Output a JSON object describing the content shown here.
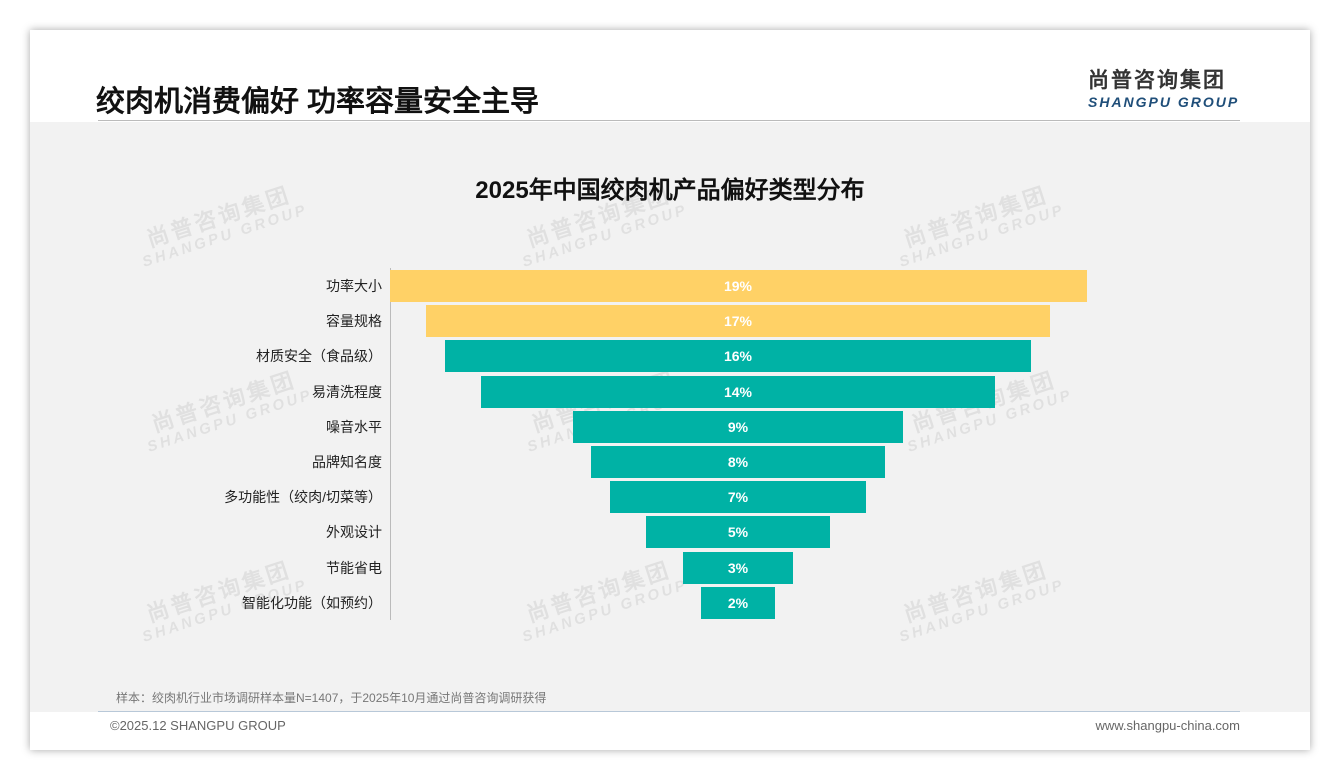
{
  "header": {
    "title": "绞肉机消费偏好 功率容量安全主导",
    "logo_cn": "尚普咨询集团",
    "logo_en": "SHANGPU GROUP"
  },
  "watermark": {
    "cn": "尚普咨询集团",
    "en": "SHANGPU GROUP"
  },
  "chart_data": {
    "type": "bar",
    "orientation": "horizontal-funnel",
    "title": "2025年中国绞肉机产品偏好类型分布",
    "categories": [
      "功率大小",
      "容量规格",
      "材质安全（食品级）",
      "易清洗程度",
      "噪音水平",
      "品牌知名度",
      "多功能性（绞肉/切菜等）",
      "外观设计",
      "节能省电",
      "智能化功能（如预约）"
    ],
    "values": [
      19,
      17,
      16,
      14,
      9,
      8,
      7,
      5,
      3,
      2
    ],
    "labels": [
      "19%",
      "17%",
      "16%",
      "14%",
      "9%",
      "8%",
      "7%",
      "5%",
      "3%",
      "2%"
    ],
    "colors": [
      "#FFD166",
      "#FFD166",
      "#00B2A5",
      "#00B2A5",
      "#00B2A5",
      "#00B2A5",
      "#00B2A5",
      "#00B2A5",
      "#00B2A5",
      "#00B2A5"
    ],
    "xlim": [
      0,
      19
    ]
  },
  "footer": {
    "note": "样本：绞肉机行业市场调研样本量N=1407，于2025年10月通过尚普咨询调研获得",
    "copyright": "©2025.12 SHANGPU GROUP",
    "url": "www.shangpu-china.com"
  }
}
